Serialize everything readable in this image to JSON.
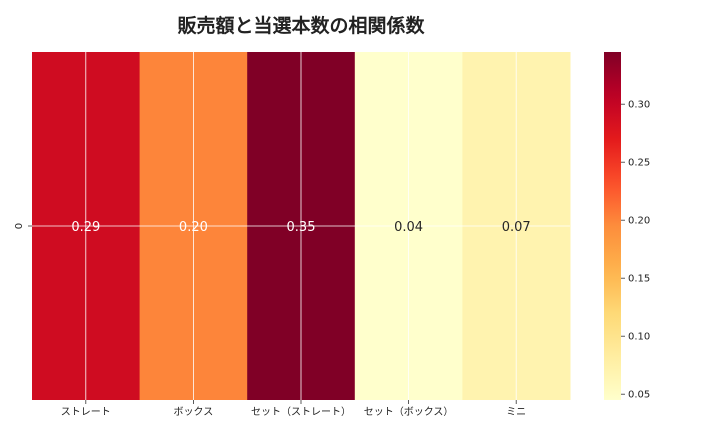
{
  "chart_data": {
    "type": "heatmap",
    "title": "販売額と当選本数の相関係数",
    "rows": [
      "0"
    ],
    "columns": [
      "ストレート",
      "ボックス",
      "セット（ストレート）",
      "セット（ボックス）",
      "ミニ"
    ],
    "values": [
      [
        0.29,
        0.2,
        0.35,
        0.04,
        0.07
      ]
    ],
    "cell_labels": [
      "0.29",
      "0.20",
      "0.35",
      "0.04",
      "0.07"
    ],
    "colormap": "YlOrRd",
    "colorbar": {
      "range": [
        0.045,
        0.345
      ],
      "ticks": [
        0.05,
        0.1,
        0.15,
        0.2,
        0.25,
        0.3
      ],
      "tick_labels": [
        "0.05",
        "0.10",
        "0.15",
        "0.20",
        "0.25",
        "0.30"
      ]
    },
    "grid": true,
    "xlabel": "",
    "ylabel": ""
  }
}
